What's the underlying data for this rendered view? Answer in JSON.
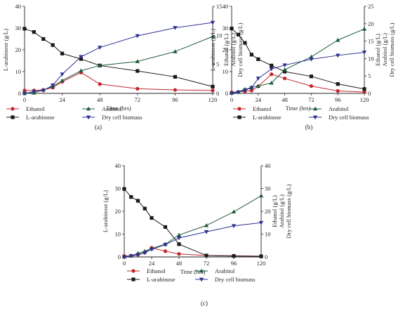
{
  "series_styles": [
    {
      "key": "ethanol",
      "color": "#c1272d",
      "marker": "circle"
    },
    {
      "key": "larabinose",
      "color": "#1a1a1a",
      "marker": "square"
    },
    {
      "key": "arabitol",
      "color": "#1e5c3a",
      "marker": "triangle-up"
    },
    {
      "key": "biomass",
      "color": "#2e3192",
      "marker": "triangle-down"
    }
  ],
  "chart_data": [
    {
      "type": "line",
      "panel_label": "(a)",
      "xlabel": "Time (hrs)",
      "ylabel_left": "L-arabinose (g/L)",
      "ylabel_right_lines": [
        "Ethanol (g/L)",
        "Arabitol (g/L)",
        "Dry cell biomass (g/L)"
      ],
      "x_ticks": [
        0,
        24,
        48,
        72,
        96,
        120
      ],
      "xlim": [
        0,
        120
      ],
      "ylim_left": [
        0,
        40
      ],
      "y_ticks_left": [
        0,
        10,
        20,
        30,
        40
      ],
      "ylim_right": [
        0,
        15
      ],
      "y_ticks_right": [
        0,
        5,
        10,
        15
      ],
      "x": [
        0,
        6,
        12,
        18,
        24,
        36,
        48,
        72,
        96,
        120
      ],
      "series": [
        {
          "name": "Ethanol",
          "axis": "right",
          "style": "ethanol",
          "values": [
            0.5,
            0.5,
            0.6,
            1.0,
            2.0,
            3.6,
            1.6,
            0.8,
            0.6,
            0.5
          ]
        },
        {
          "name": "L-arabinose",
          "axis": "left",
          "style": "larabinose",
          "values": [
            29.7,
            28.2,
            25.0,
            22.2,
            18.3,
            15.8,
            12.8,
            10.3,
            7.6,
            3.1
          ]
        },
        {
          "name": "Arabitol",
          "axis": "right",
          "style": "arabitol",
          "values": [
            0,
            0.1,
            0.6,
            1.2,
            2.2,
            3.9,
            4.8,
            5.5,
            7.2,
            9.8
          ]
        },
        {
          "name": "Dry cell biomass",
          "axis": "right",
          "style": "biomass",
          "values": [
            0,
            0.3,
            0.5,
            1.4,
            3.3,
            6.3,
            7.9,
            9.9,
            11.3,
            12.2
          ]
        }
      ],
      "legend": {
        "placement": "bottom",
        "columns": [
          [
            "Ethanol",
            "L-arabinose"
          ],
          [
            "Arabitol",
            "Dry cell biomass"
          ]
        ]
      }
    },
    {
      "type": "line",
      "panel_label": "(b)",
      "xlabel": "Time (hrs)",
      "ylabel_left": "L-arabinose (g/L)",
      "ylabel_right_lines": [
        "Ethanol (g/L)",
        "Arabitol (g/L)",
        "Dry cell biomass (g/L)"
      ],
      "x_ticks": [
        0,
        24,
        48,
        72,
        96,
        120
      ],
      "xlim": [
        0,
        120
      ],
      "ylim_left": [
        0,
        40
      ],
      "y_ticks_left": [
        0,
        10,
        20,
        30,
        40
      ],
      "ylim_right": [
        0,
        25
      ],
      "y_ticks_right": [
        0,
        5,
        10,
        15,
        20,
        25
      ],
      "x": [
        0,
        6,
        12,
        18,
        24,
        36,
        48,
        72,
        96,
        120
      ],
      "series": [
        {
          "name": "Ethanol",
          "axis": "right",
          "style": "ethanol",
          "values": [
            0.3,
            0.4,
            0.6,
            0.8,
            2.0,
            5.5,
            4.3,
            2.1,
            0.7,
            0.4
          ]
        },
        {
          "name": "L-arabinose",
          "axis": "left",
          "style": "larabinose",
          "values": [
            29.8,
            27.0,
            23.2,
            17.8,
            15.7,
            12.8,
            10.0,
            7.8,
            4.3,
            2.0
          ]
        },
        {
          "name": "Arabitol",
          "axis": "right",
          "style": "arabitol",
          "values": [
            0.1,
            0.4,
            1.2,
            1.7,
            2.1,
            3.0,
            6.8,
            10.5,
            15.3,
            18.5
          ]
        },
        {
          "name": "Dry cell biomass",
          "axis": "right",
          "style": "biomass",
          "values": [
            0,
            0.3,
            0.9,
            1.6,
            4.3,
            7.0,
            8.1,
            9.8,
            10.9,
            11.8
          ]
        }
      ],
      "legend": {
        "placement": "bottom",
        "columns": [
          [
            "Ethanol",
            "L-arabinose"
          ],
          [
            "Arabitol",
            "Dry cell biomass"
          ]
        ]
      }
    },
    {
      "type": "line",
      "panel_label": "(c)",
      "xlabel": "Time (hrs)",
      "ylabel_left": "L-arabinose (g/L)",
      "ylabel_right_lines": [
        "Ethanol (g/L)",
        "Arabitol (g/L)",
        "Dry cell biomass (g/L)"
      ],
      "x_ticks": [
        0,
        24,
        48,
        72,
        96,
        120
      ],
      "xlim": [
        0,
        120
      ],
      "ylim_left": [
        0,
        40
      ],
      "y_ticks_left": [
        0,
        10,
        20,
        30,
        40
      ],
      "ylim_right": [
        0,
        40
      ],
      "y_ticks_right": [
        0,
        10,
        20,
        30,
        40
      ],
      "x": [
        0,
        6,
        12,
        18,
        24,
        36,
        48,
        72,
        96,
        120
      ],
      "series": [
        {
          "name": "Ethanol",
          "axis": "right",
          "style": "ethanol",
          "values": [
            0.4,
            0.5,
            1.0,
            1.9,
            4.0,
            2.5,
            1.3,
            0.6,
            0.5,
            0.3
          ]
        },
        {
          "name": "L-arabinose",
          "axis": "left",
          "style": "larabinose",
          "values": [
            29.8,
            26.3,
            24.6,
            21.2,
            17.1,
            13.1,
            5.6,
            0.6,
            0.4,
            0.3
          ]
        },
        {
          "name": "Arabitol",
          "axis": "right",
          "style": "arabitol",
          "values": [
            0,
            0.5,
            1.6,
            2.5,
            3.7,
            5.6,
            9.6,
            13.8,
            19.8,
            26.8
          ]
        },
        {
          "name": "Dry cell biomass",
          "axis": "right",
          "style": "biomass",
          "values": [
            0,
            0.4,
            0.9,
            1.8,
            3.3,
            5.4,
            8.3,
            11.0,
            13.6,
            15.0
          ]
        }
      ],
      "legend": {
        "placement": "bottom",
        "columns": [
          [
            "Ethanol",
            "L-arabinose"
          ],
          [
            "Arabitol",
            "Dry cell biomass"
          ]
        ]
      }
    }
  ]
}
